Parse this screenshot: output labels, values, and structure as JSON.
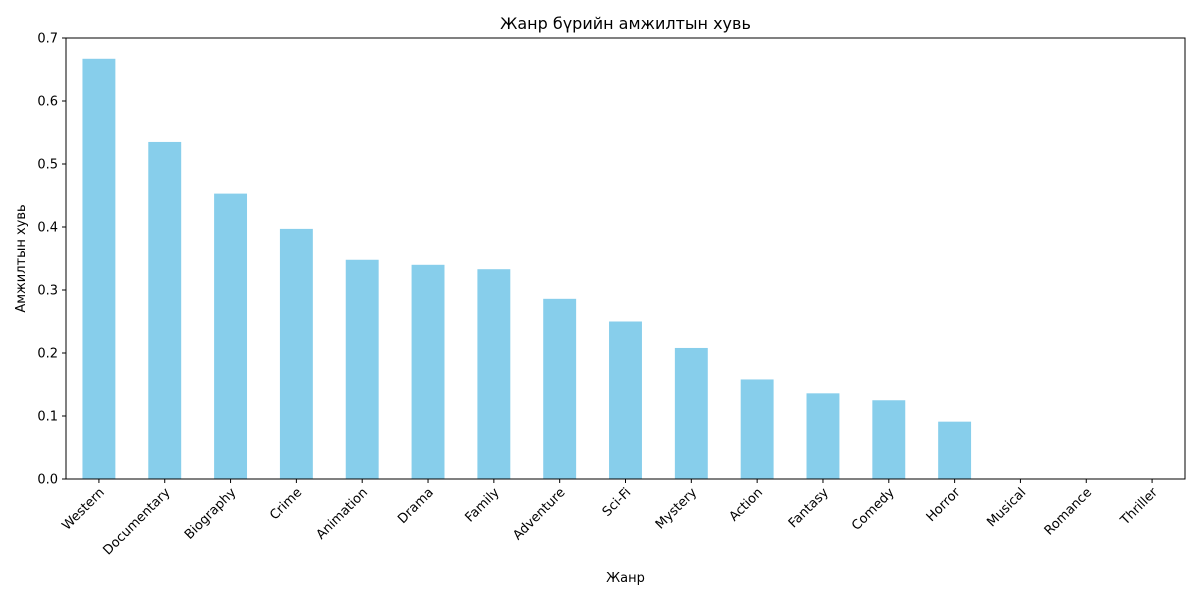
{
  "chart_data": {
    "type": "bar",
    "title": "Жанр бүрийн амжилтын хувь",
    "xlabel": "Жанр",
    "ylabel": "Амжилтын хувь",
    "categories": [
      "Western",
      "Documentary",
      "Biography",
      "Crime",
      "Animation",
      "Drama",
      "Family",
      "Adventure",
      "Sci-Fi",
      "Mystery",
      "Action",
      "Fantasy",
      "Comedy",
      "Horror",
      "Musical",
      "Romance",
      "Thriller"
    ],
    "values": [
      0.667,
      0.535,
      0.453,
      0.397,
      0.348,
      0.34,
      0.333,
      0.286,
      0.25,
      0.208,
      0.158,
      0.136,
      0.125,
      0.091,
      0.0,
      0.0,
      0.0
    ],
    "ylim": [
      0,
      0.7
    ],
    "yticks": [
      "0.0",
      "0.1",
      "0.2",
      "0.3",
      "0.4",
      "0.5",
      "0.6",
      "0.7"
    ],
    "bar_color": "#87ceeb",
    "grid": false,
    "legend": "none"
  }
}
